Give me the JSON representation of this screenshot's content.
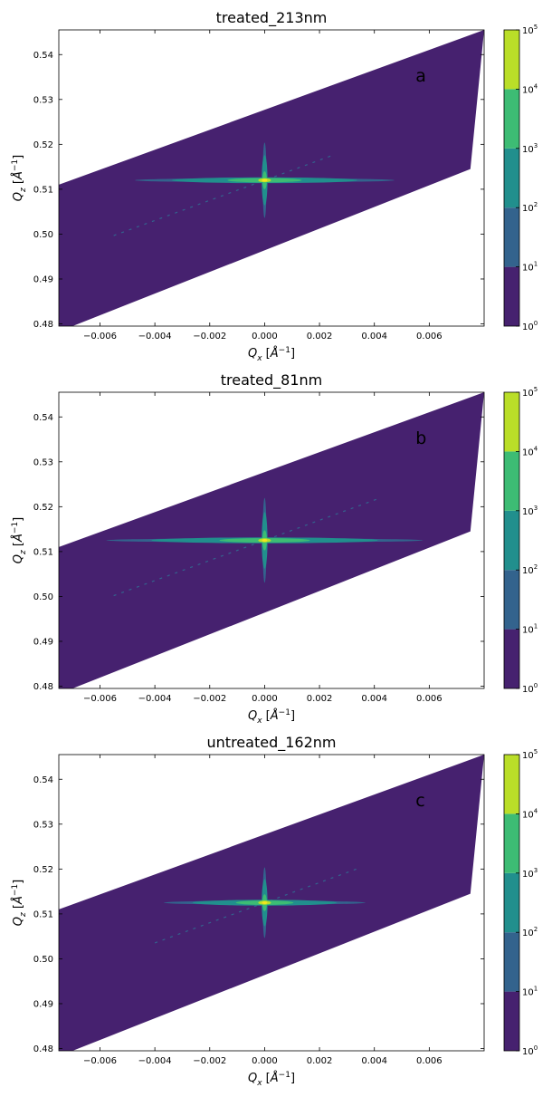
{
  "colors": {
    "levels": [
      "#46216f",
      "#33638d",
      "#218f8d",
      "#3dbc74",
      "#bade28"
    ],
    "core": "#f3e51e",
    "frame": "#000000",
    "panel_label": "#ffffff"
  },
  "chart_data": [
    {
      "type": "heatmap",
      "title": "treated_213nm",
      "panel_label": "a",
      "xlabel": "Q_x [Å^-1]",
      "ylabel": "Q_z [Å^-1]",
      "xlim": [
        -0.0075,
        0.008
      ],
      "ylim": [
        0.4795,
        0.5455
      ],
      "xticks": [
        -0.006,
        -0.004,
        -0.002,
        0.0,
        0.002,
        0.004,
        0.006
      ],
      "xtick_labels": [
        "−0.006",
        "−0.004",
        "−0.002",
        "0.000",
        "0.002",
        "0.004",
        "0.006"
      ],
      "yticks": [
        0.48,
        0.49,
        0.5,
        0.51,
        0.52,
        0.53,
        0.54
      ],
      "ytick_labels": [
        "0.48",
        "0.49",
        "0.50",
        "0.51",
        "0.52",
        "0.53",
        "0.54"
      ],
      "colorbar": {
        "scale": "log",
        "levels_exponents": [
          0,
          1,
          2,
          3,
          4,
          5
        ],
        "tick_base": "10"
      },
      "coverage_polygon": [
        [
          -0.0075,
          0.511
        ],
        [
          0.008,
          0.5455
        ],
        [
          0.008,
          0.5455
        ],
        [
          0.0075,
          0.5145
        ],
        [
          -0.007,
          0.4795
        ],
        [
          -0.0075,
          0.4795
        ]
      ],
      "peak": {
        "qx": 0.0,
        "qz": 0.512
      },
      "streak_qx_halfwidth_lvl2": 0.0045,
      "streak_qz_halfwidth_lvl2": 0.008,
      "diffuse_qx_range": [
        -0.0055,
        0.0025
      ]
    },
    {
      "type": "heatmap",
      "title": "treated_81nm",
      "panel_label": "b",
      "xlabel": "Q_x [Å^-1]",
      "ylabel": "Q_z [Å^-1]",
      "xlim": [
        -0.0075,
        0.008
      ],
      "ylim": [
        0.4795,
        0.5455
      ],
      "xticks": [
        -0.006,
        -0.004,
        -0.002,
        0.0,
        0.002,
        0.004,
        0.006
      ],
      "xtick_labels": [
        "−0.006",
        "−0.004",
        "−0.002",
        "0.000",
        "0.002",
        "0.004",
        "0.006"
      ],
      "yticks": [
        0.48,
        0.49,
        0.5,
        0.51,
        0.52,
        0.53,
        0.54
      ],
      "ytick_labels": [
        "0.48",
        "0.49",
        "0.50",
        "0.51",
        "0.52",
        "0.53",
        "0.54"
      ],
      "colorbar": {
        "scale": "log",
        "levels_exponents": [
          0,
          1,
          2,
          3,
          4,
          5
        ],
        "tick_base": "10"
      },
      "coverage_polygon": [
        [
          -0.0075,
          0.511
        ],
        [
          0.008,
          0.5455
        ],
        [
          0.008,
          0.5455
        ],
        [
          0.0075,
          0.5145
        ],
        [
          -0.007,
          0.4795
        ],
        [
          -0.0075,
          0.4795
        ]
      ],
      "peak": {
        "qx": 0.0,
        "qz": 0.5125
      },
      "streak_qx_halfwidth_lvl2": 0.0055,
      "streak_qz_halfwidth_lvl2": 0.009,
      "diffuse_qx_range": [
        -0.0055,
        0.0042
      ]
    },
    {
      "type": "heatmap",
      "title": "untreated_162nm",
      "panel_label": "c",
      "xlabel": "Q_x [Å^-1]",
      "ylabel": "Q_z [Å^-1]",
      "xlim": [
        -0.0075,
        0.008
      ],
      "ylim": [
        0.4795,
        0.5455
      ],
      "xticks": [
        -0.006,
        -0.004,
        -0.002,
        0.0,
        0.002,
        0.004,
        0.006
      ],
      "xtick_labels": [
        "−0.006",
        "−0.004",
        "−0.002",
        "0.000",
        "0.002",
        "0.004",
        "0.006"
      ],
      "yticks": [
        0.48,
        0.49,
        0.5,
        0.51,
        0.52,
        0.53,
        0.54
      ],
      "ytick_labels": [
        "0.48",
        "0.49",
        "0.50",
        "0.51",
        "0.52",
        "0.53",
        "0.54"
      ],
      "colorbar": {
        "scale": "log",
        "levels_exponents": [
          0,
          1,
          2,
          3,
          4,
          5
        ],
        "tick_base": "10"
      },
      "coverage_polygon": [
        [
          -0.0075,
          0.511
        ],
        [
          0.008,
          0.5455
        ],
        [
          0.008,
          0.5455
        ],
        [
          0.0075,
          0.5145
        ],
        [
          -0.007,
          0.4795
        ],
        [
          -0.0075,
          0.4795
        ]
      ],
      "peak": {
        "qx": 0.0,
        "qz": 0.5125
      },
      "streak_qx_halfwidth_lvl2": 0.0035,
      "streak_qz_halfwidth_lvl2": 0.0075,
      "diffuse_qx_range": [
        -0.004,
        0.0035
      ]
    }
  ]
}
